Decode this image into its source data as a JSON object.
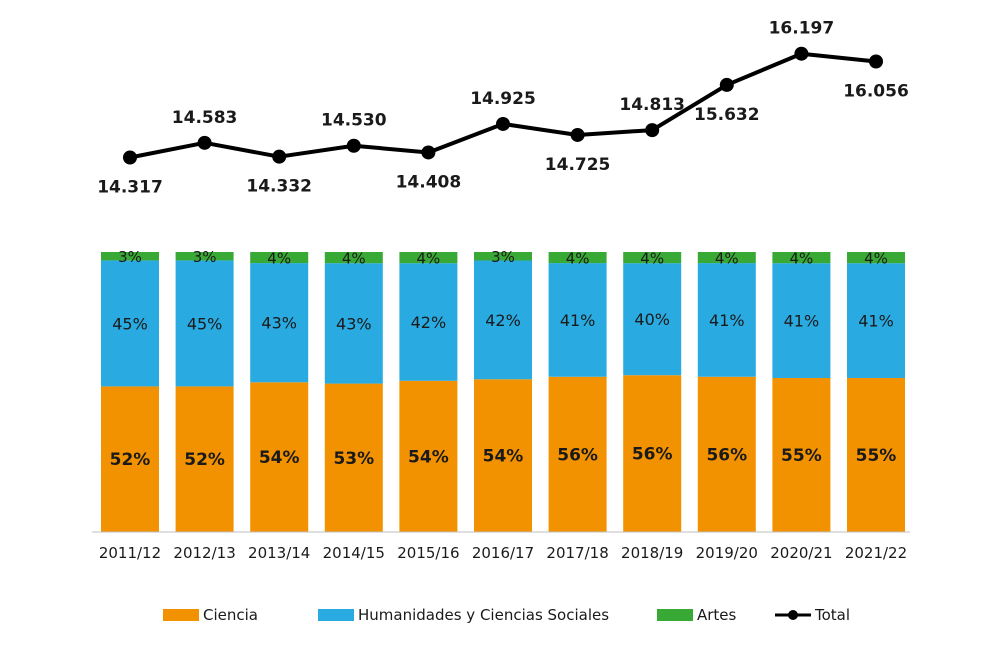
{
  "chart_data": {
    "type": "bar",
    "stacked": true,
    "categories": [
      "2011/12",
      "2012/13",
      "2013/14",
      "2014/15",
      "2015/16",
      "2016/17",
      "2017/18",
      "2018/19",
      "2019/20",
      "2020/21",
      "2021/22"
    ],
    "category_labels": [
      "2011/12",
      "2012/13",
      "2013/14",
      "2014/15",
      "2015/16",
      "2016/17",
      "2017/18",
      "2018/19",
      "2019/20",
      "2020/21",
      "2021/22"
    ],
    "series": [
      {
        "name": "Ciencia",
        "color": "#f39200",
        "values": [
          52,
          52,
          54,
          53,
          54,
          54,
          56,
          56,
          56,
          55,
          55
        ],
        "value_labels": [
          "52%",
          "52%",
          "54%",
          "53%",
          "54%",
          "54%",
          "56%",
          "56%",
          "56%",
          "55%",
          "55%"
        ]
      },
      {
        "name": "Humanidades y Ciencias Sociales",
        "color": "#29abe2",
        "values": [
          45,
          45,
          43,
          43,
          42,
          42,
          41,
          40,
          41,
          41,
          41
        ],
        "value_labels": [
          "45%",
          "45%",
          "43%",
          "43%",
          "42%",
          "42%",
          "41%",
          "40%",
          "41%",
          "41%",
          "41%"
        ]
      },
      {
        "name": "Artes",
        "color": "#39a935",
        "values": [
          3,
          3,
          4,
          4,
          4,
          3,
          4,
          4,
          4,
          4,
          4
        ],
        "value_labels": [
          "3%",
          "3%",
          "4%",
          "4%",
          "4%",
          "3%",
          "4%",
          "4%",
          "4%",
          "4%",
          "4%"
        ]
      }
    ],
    "total": {
      "name": "Total",
      "type": "line",
      "color": "#000000",
      "values": [
        14317,
        14583,
        14332,
        14530,
        14408,
        14925,
        14725,
        14813,
        15632,
        16197,
        16056
      ],
      "value_labels": [
        "14.317",
        "14.583",
        "14.332",
        "14.530",
        "14.408",
        "14.925",
        "14.725",
        "14.813",
        "15.632",
        "16.197",
        "16.056"
      ],
      "label_side": [
        "below",
        "above",
        "below",
        "above",
        "below",
        "above",
        "below",
        "above",
        "below",
        "above",
        "below"
      ]
    },
    "legend": {
      "position": "bottom",
      "items": [
        {
          "label": "Ciencia",
          "color": "#f39200",
          "kind": "box"
        },
        {
          "label": "Humanidades y Ciencias Sociales",
          "color": "#29abe2",
          "kind": "box"
        },
        {
          "label": "Artes",
          "color": "#39a935",
          "kind": "box"
        },
        {
          "label": "Total",
          "color": "#000000",
          "kind": "line-marker"
        }
      ]
    },
    "grid": false
  }
}
